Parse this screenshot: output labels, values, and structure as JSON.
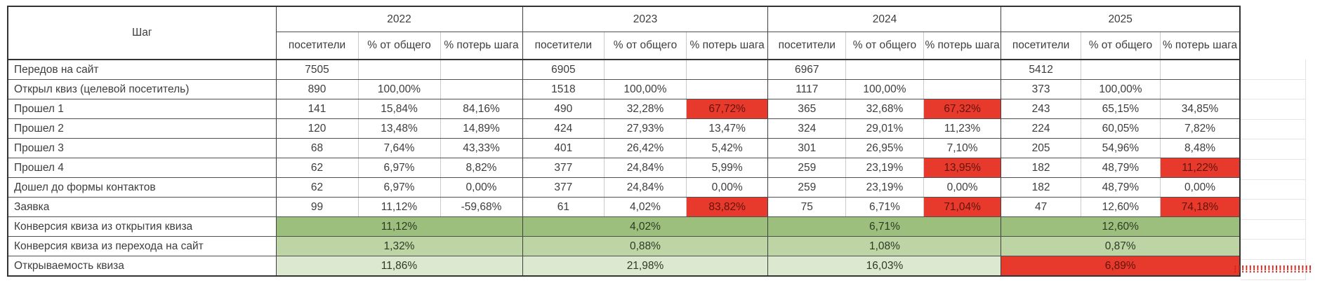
{
  "colors": {
    "red_bg": "#e83a2c",
    "red_text": "#601409",
    "green_dark": "#9cbf7e",
    "green_mid": "#bdd4a5",
    "green_light": "#dce8cf",
    "alert_text": "#cf2b1e"
  },
  "table": {
    "step_header": "Шаг",
    "year_labels": [
      "2022",
      "2023",
      "2024",
      "2025"
    ],
    "sub_headers": [
      "посетители",
      "% от общего",
      "% потерь шага"
    ],
    "data_rows": [
      {
        "label": "Передов на сайт",
        "cells": [
          [
            "7505",
            "",
            ""
          ],
          [
            "6905",
            "",
            ""
          ],
          [
            "6967",
            "",
            ""
          ],
          [
            "5412",
            "",
            ""
          ]
        ]
      },
      {
        "label": "Открыл квиз (целевой посетитель)",
        "cells": [
          [
            "890",
            "100,00%",
            ""
          ],
          [
            "1518",
            "100,00%",
            ""
          ],
          [
            "1117",
            "100,00%",
            ""
          ],
          [
            "373",
            "100,00%",
            ""
          ]
        ]
      },
      {
        "label": "Прошел 1",
        "cells": [
          [
            "141",
            "15,84%",
            "84,16%"
          ],
          [
            "490",
            "32,28%",
            "67,72%"
          ],
          [
            "365",
            "32,68%",
            "67,32%"
          ],
          [
            "243",
            "65,15%",
            "34,85%"
          ]
        ],
        "red_loss_years": [
          1,
          2
        ]
      },
      {
        "label": "Прошел 2",
        "cells": [
          [
            "120",
            "13,48%",
            "14,89%"
          ],
          [
            "424",
            "27,93%",
            "13,47%"
          ],
          [
            "324",
            "29,01%",
            "11,23%"
          ],
          [
            "224",
            "60,05%",
            "7,82%"
          ]
        ]
      },
      {
        "label": "Прошел 3",
        "cells": [
          [
            "68",
            "7,64%",
            "43,33%"
          ],
          [
            "401",
            "26,42%",
            "5,42%"
          ],
          [
            "301",
            "26,95%",
            "7,10%"
          ],
          [
            "205",
            "54,96%",
            "8,48%"
          ]
        ]
      },
      {
        "label": "Прошел 4",
        "cells": [
          [
            "62",
            "6,97%",
            "8,82%"
          ],
          [
            "377",
            "24,84%",
            "5,99%"
          ],
          [
            "259",
            "23,19%",
            "13,95%"
          ],
          [
            "182",
            "48,79%",
            "11,22%"
          ]
        ],
        "red_loss_years": [
          2,
          3
        ]
      },
      {
        "label": "Дошел до формы контактов",
        "cells": [
          [
            "62",
            "6,97%",
            "0,00%"
          ],
          [
            "377",
            "24,84%",
            "0,00%"
          ],
          [
            "259",
            "23,19%",
            "0,00%"
          ],
          [
            "182",
            "48,79%",
            "0,00%"
          ]
        ]
      },
      {
        "label": "Заявка",
        "cells": [
          [
            "99",
            "11,12%",
            "-59,68%"
          ],
          [
            "61",
            "4,02%",
            "83,82%"
          ],
          [
            "75",
            "6,71%",
            "71,04%"
          ],
          [
            "47",
            "12,60%",
            "74,18%"
          ]
        ],
        "red_loss_years": [
          1,
          2,
          3
        ]
      }
    ],
    "summary_rows": [
      {
        "label": "Конверсия квиза из открытия квиза",
        "shade": "dark",
        "values": [
          "11,12%",
          "4,02%",
          "6,71%",
          "12,60%"
        ]
      },
      {
        "label": "Конверсия квиза из перехода на сайт",
        "shade": "mid",
        "values": [
          "1,32%",
          "0,88%",
          "1,08%",
          "0,87%"
        ]
      },
      {
        "label": "Открываемость квиза",
        "shade": "light",
        "values": [
          "11,86%",
          "21,98%",
          "16,03%",
          "6,89%"
        ],
        "red_years": [
          3
        ]
      }
    ],
    "alert_text": "!!!!!!!!!!!!!!!!!!!!!"
  }
}
